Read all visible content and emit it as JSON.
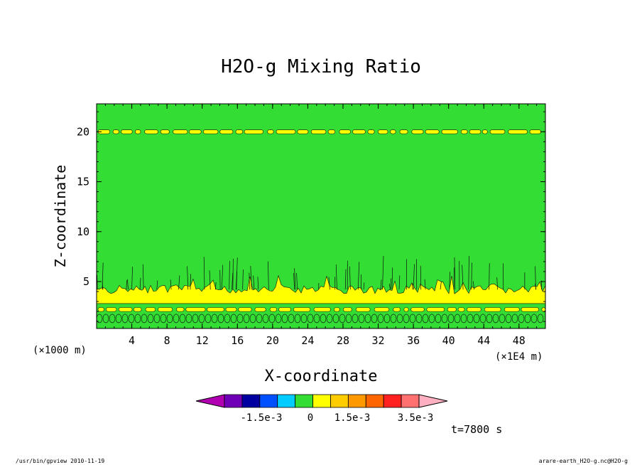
{
  "chart_data": {
    "type": "heatmap",
    "title": "H2O-g Mixing Ratio",
    "xlabel": "X-coordinate",
    "ylabel": "Z-coordinate",
    "x_unit_label": "(×1E4 m)",
    "y_unit_label": "(×1000 m)",
    "xlim": [
      0,
      51
    ],
    "ylim": [
      0.3,
      22.8
    ],
    "x_ticks": [
      "4",
      "8",
      "12",
      "16",
      "20",
      "24",
      "28",
      "32",
      "36",
      "40",
      "44",
      "48"
    ],
    "y_ticks": [
      "5",
      "10",
      "15",
      "20"
    ],
    "levels": [
      {
        "range": "< -3.5e-3",
        "color": "#b000b0"
      },
      {
        "range": "-3.5e-3 to -2.5e-3",
        "color": "#7000b8"
      },
      {
        "range": "-2.5e-3 to -1.5e-3",
        "color": "#0000a0"
      },
      {
        "range": "-1.5e-3 to -0.5e-3",
        "color": "#0050ff"
      },
      {
        "range": "-0.5e-3 to 0",
        "color": "#00ccff"
      },
      {
        "range": "0 to 0.5e-3",
        "color": "#33dd33"
      },
      {
        "range": "0.5e-3 to 1.5e-3",
        "color": "#ffff00"
      },
      {
        "range": "1.5e-3 to 2.5e-3",
        "color": "#ffcc00"
      },
      {
        "range": "2.5e-3 to 3.0e-3",
        "color": "#ff9900"
      },
      {
        "range": "3.0e-3 to 3.5e-3",
        "color": "#ff6600"
      },
      {
        "range": "3.5e-3 to 4.0e-3",
        "color": "#ff2020"
      },
      {
        "range": "4.0e-3 to 4.5e-3",
        "color": "#ff7070"
      },
      {
        "range": "> 4.5e-3",
        "color": "#ffb0c0"
      }
    ],
    "colorbar_labels": [
      "-1.5e-3",
      "0",
      "1.5e-3",
      "3.5e-3"
    ],
    "fields": {
      "background": "0 to 0.5e-3",
      "bands": [
        {
          "z_range": [
            19.8,
            20.2
          ],
          "level": "0.5e-3 to 1.5e-3",
          "note": "thin broken layer"
        },
        {
          "z_range": [
            2.8,
            4.2
          ],
          "level": "0.5e-3 to 1.5e-3",
          "note": "moist layer"
        },
        {
          "z_range": [
            2.0,
            2.4
          ],
          "level": "0.5e-3 to 1.5e-3",
          "note": "broken layer"
        }
      ]
    }
  },
  "annotations": {
    "time": "t=7800 s",
    "footer_left": "/usr/bin/gpview   2010-11-19",
    "footer_right": "arare-earth_H2O-g.nc@H2O-g"
  }
}
